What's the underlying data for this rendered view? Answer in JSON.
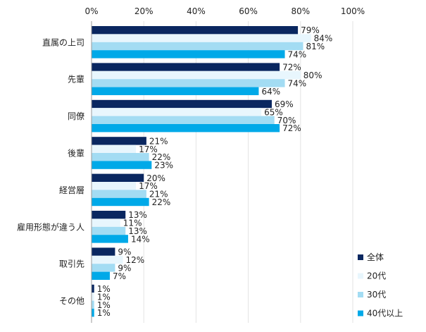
{
  "chart_data": {
    "type": "bar",
    "orientation": "horizontal",
    "title": "",
    "xlabel": "",
    "ylabel": "",
    "xlim": [
      0,
      100
    ],
    "x_ticks": [
      "0%",
      "20%",
      "40%",
      "60%",
      "80%",
      "100%"
    ],
    "x_tick_values": [
      0,
      20,
      40,
      60,
      80,
      100
    ],
    "value_suffix": "%",
    "grid": true,
    "legend_position": "bottom-right",
    "categories": [
      "直属の上司",
      "先輩",
      "同僚",
      "後輩",
      "経営層",
      "雇用形態が違う人",
      "取引先",
      "その他"
    ],
    "series": [
      {
        "name": "全体",
        "color": "#0a2760",
        "values": [
          79,
          72,
          69,
          21,
          20,
          13,
          9,
          1
        ]
      },
      {
        "name": "20代",
        "color": "#e8f6fd",
        "values": [
          84,
          80,
          65,
          17,
          17,
          11,
          12,
          1
        ]
      },
      {
        "name": "30代",
        "color": "#a3dcf3",
        "values": [
          81,
          74,
          70,
          22,
          21,
          13,
          9,
          1
        ]
      },
      {
        "name": "40代以上",
        "color": "#00a9e8",
        "values": [
          74,
          64,
          72,
          23,
          22,
          14,
          7,
          1
        ]
      }
    ]
  }
}
